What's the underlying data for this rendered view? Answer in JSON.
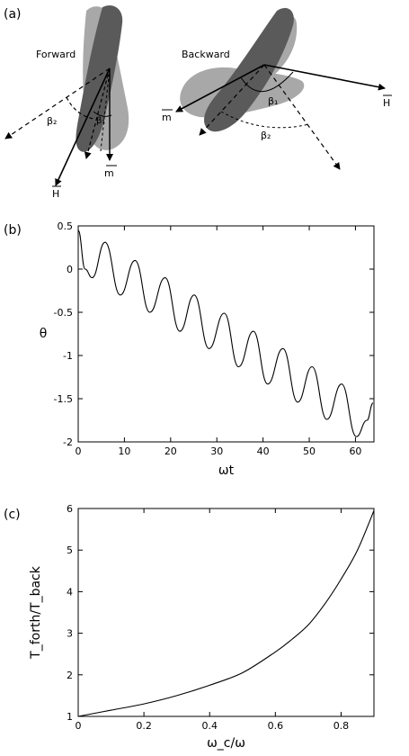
{
  "panels": {
    "a": {
      "label": "(a)"
    },
    "b": {
      "label": "(b)"
    },
    "c": {
      "label": "(c)"
    }
  },
  "diagram": {
    "forward": {
      "title": "Forward",
      "beta1": "β₁",
      "beta2": "β₂",
      "m": "m",
      "H": "H"
    },
    "backward": {
      "title": "Backward",
      "beta1": "β₁",
      "beta2": "β₂",
      "m": "m",
      "H": "H"
    },
    "colors": {
      "dark_body": "#5a5a5a",
      "light_body": "#a8a8a8"
    }
  },
  "chart_data": [
    {
      "id": "b",
      "type": "line",
      "title": "",
      "xlabel": "ωt",
      "ylabel": "θ",
      "xlim": [
        0,
        64
      ],
      "ylim": [
        -2,
        0.5
      ],
      "xticks": [
        "0",
        "10",
        "20",
        "30",
        "40",
        "50",
        "60"
      ],
      "xtick_values": [
        0,
        10,
        20,
        30,
        40,
        50,
        60
      ],
      "yticks": [
        "0.5",
        "0",
        "-0.5",
        "-1",
        "-1.5",
        "-2"
      ],
      "ytick_values": [
        0.5,
        0,
        -0.5,
        -1,
        -1.5,
        -2
      ],
      "grid": false,
      "series": [
        {
          "x": [
            0,
            1.5,
            3.0,
            5.8,
            9.1,
            12.3,
            15.5,
            18.8,
            22.0,
            25.1,
            28.3,
            31.6,
            34.7,
            37.9,
            41.0,
            44.3,
            47.5,
            50.6,
            53.8,
            57.0,
            60.2,
            62.5,
            63.8
          ],
          "y": [
            0.45,
            0.0,
            -0.1,
            0.31,
            -0.3,
            0.1,
            -0.5,
            -0.1,
            -0.72,
            -0.3,
            -0.92,
            -0.51,
            -1.13,
            -0.72,
            -1.33,
            -0.92,
            -1.54,
            -1.13,
            -1.74,
            -1.33,
            -1.94,
            -1.75,
            -1.55
          ]
        }
      ]
    },
    {
      "id": "c",
      "type": "line",
      "title": "",
      "xlabel": "ω_c/ω",
      "ylabel": "T_forth/T_back",
      "xlim": [
        0,
        0.9
      ],
      "ylim": [
        1,
        6
      ],
      "xticks": [
        "0",
        "0.2",
        "0.4",
        "0.6",
        "0.8"
      ],
      "xtick_values": [
        0,
        0.2,
        0.4,
        0.6,
        0.8
      ],
      "yticks": [
        "6",
        "5",
        "4",
        "3",
        "2",
        "1"
      ],
      "ytick_values": [
        6,
        5,
        4,
        3,
        2,
        1
      ],
      "grid": false,
      "series": [
        {
          "x": [
            0,
            0.1,
            0.2,
            0.3,
            0.4,
            0.5,
            0.6,
            0.65,
            0.7,
            0.75,
            0.8,
            0.85,
            0.9
          ],
          "y": [
            1.0,
            1.15,
            1.3,
            1.5,
            1.75,
            2.05,
            2.55,
            2.85,
            3.2,
            3.7,
            4.3,
            5.0,
            5.95
          ]
        }
      ]
    }
  ]
}
